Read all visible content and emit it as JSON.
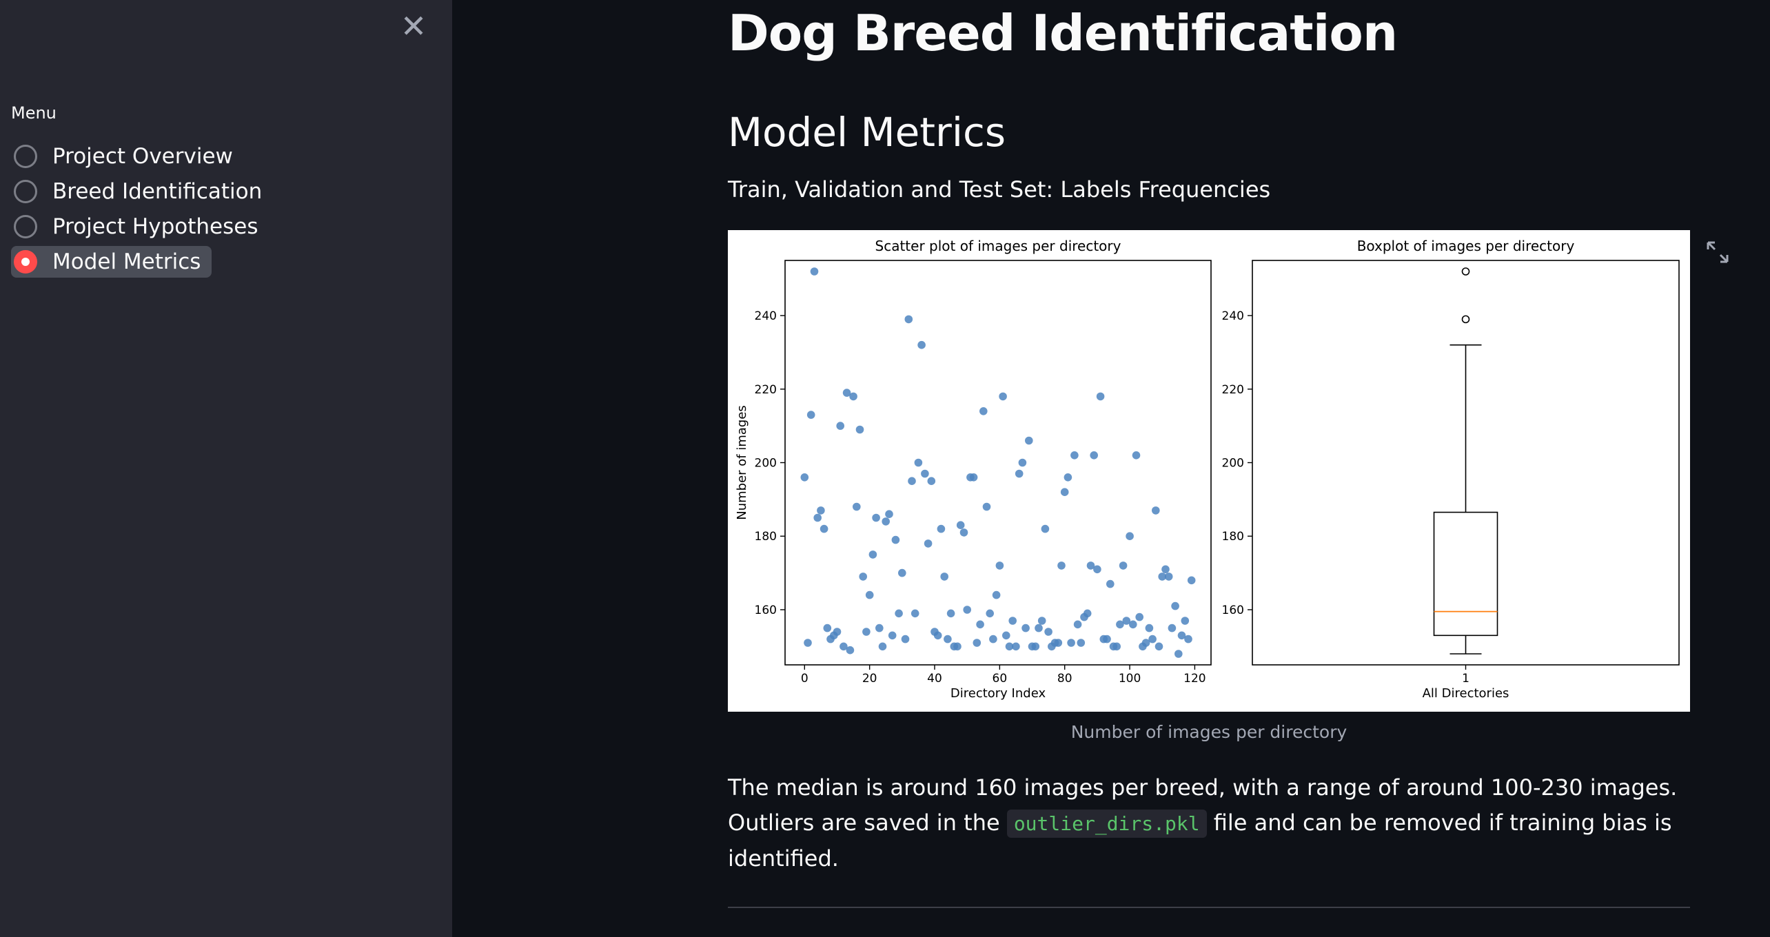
{
  "sidebar": {
    "menu_label": "Menu",
    "items": [
      {
        "label": "Project Overview",
        "selected": false
      },
      {
        "label": "Breed Identification",
        "selected": false
      },
      {
        "label": "Project Hypotheses",
        "selected": false
      },
      {
        "label": "Model Metrics",
        "selected": true
      }
    ],
    "close_icon": "close-icon"
  },
  "main": {
    "title": "Dog Breed Identification",
    "section_title": "Model Metrics",
    "chart_subtitle": "Train, Validation and Test Set: Labels Frequencies",
    "figure_caption": "Number of images per directory",
    "paragraph": {
      "before": "The median is around 160 images per breed, with a range of around 100-230 images. Outliers are saved in the",
      "code": "outlier_dirs.pkl",
      "after": "file and can be removed if training bias is identified."
    },
    "expand_icon": "fullscreen-icon"
  },
  "colors": {
    "accent": "#ff4b4b",
    "point": "#4c84c0",
    "median": "#ff7f0e"
  },
  "chart_data": [
    {
      "type": "scatter",
      "title": "Scatter plot of images per directory",
      "xlabel": "Directory Index",
      "ylabel": "Number of images",
      "xticks": [
        0,
        20,
        40,
        60,
        80,
        100,
        120
      ],
      "yticks": [
        160,
        180,
        200,
        220,
        240
      ],
      "xlim": [
        -6,
        125
      ],
      "ylim": [
        145,
        255
      ],
      "x": [
        0,
        1,
        2,
        3,
        4,
        5,
        6,
        7,
        8,
        9,
        10,
        11,
        12,
        13,
        14,
        15,
        16,
        17,
        18,
        19,
        20,
        21,
        22,
        23,
        24,
        25,
        26,
        27,
        28,
        29,
        30,
        31,
        32,
        33,
        34,
        35,
        36,
        37,
        38,
        39,
        40,
        41,
        42,
        43,
        44,
        45,
        46,
        47,
        48,
        49,
        50,
        51,
        52,
        53,
        54,
        55,
        56,
        57,
        58,
        59,
        60,
        61,
        62,
        63,
        64,
        65,
        66,
        67,
        68,
        69,
        70,
        71,
        72,
        73,
        74,
        75,
        76,
        77,
        78,
        79,
        80,
        81,
        82,
        83,
        84,
        85,
        86,
        87,
        88,
        89,
        90,
        91,
        92,
        93,
        94,
        95,
        96,
        97,
        98,
        99,
        100,
        101,
        102,
        103,
        104,
        105,
        106,
        107,
        108,
        109,
        110,
        111,
        112,
        113,
        114,
        115,
        116,
        117,
        118,
        119
      ],
      "y": [
        196,
        151,
        213,
        252,
        185,
        187,
        182,
        155,
        152,
        153,
        154,
        210,
        150,
        219,
        149,
        218,
        188,
        209,
        169,
        154,
        164,
        175,
        185,
        155,
        150,
        184,
        186,
        153,
        179,
        159,
        170,
        152,
        239,
        195,
        159,
        200,
        232,
        197,
        178,
        195,
        154,
        153,
        182,
        169,
        152,
        159,
        150,
        150,
        183,
        181,
        160,
        196,
        196,
        151,
        156,
        214,
        188,
        159,
        152,
        164,
        172,
        218,
        153,
        150,
        157,
        150,
        197,
        200,
        155,
        206,
        150,
        150,
        155,
        157,
        182,
        154,
        150,
        151,
        151,
        172,
        192,
        196,
        151,
        202,
        156,
        151,
        158,
        159,
        172,
        202,
        171,
        218,
        152,
        152,
        167,
        150,
        150,
        156,
        172,
        157,
        180,
        156,
        202,
        158,
        150,
        151,
        155,
        152,
        187,
        150,
        169,
        171,
        169,
        155,
        161,
        148,
        153,
        157,
        152,
        168
      ]
    },
    {
      "type": "boxplot",
      "title": "Boxplot of images per directory",
      "xlabel": "All Directories",
      "xticks": [
        "1"
      ],
      "yticks": [
        160,
        180,
        200,
        220,
        240
      ],
      "ylim": [
        145,
        255
      ],
      "min": 148,
      "q1": 153,
      "median": 159.5,
      "q3": 186.5,
      "whisker_max": 232,
      "outliers": [
        252,
        239
      ]
    }
  ]
}
